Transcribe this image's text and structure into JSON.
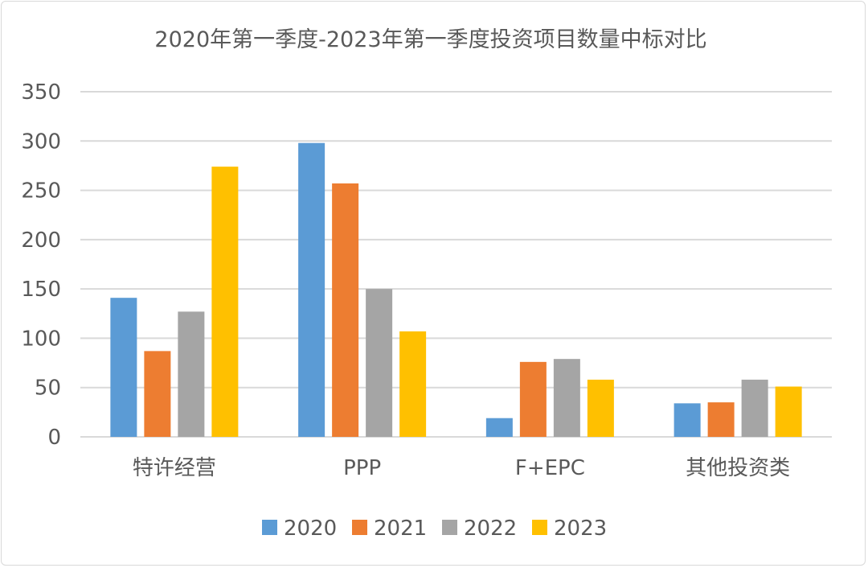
{
  "chart_data": {
    "type": "bar",
    "title": "2020年第一季度-2023年第一季度投资项目数量中标对比",
    "xlabel": "",
    "ylabel": "",
    "categories": [
      "特许经营",
      "PPP",
      "F+EPC",
      "其他投资类"
    ],
    "ylim": [
      0,
      350
    ],
    "yticks": [
      0,
      50,
      100,
      150,
      200,
      250,
      300,
      350
    ],
    "ytick_labels": [
      "0",
      "50",
      "100",
      "150",
      "200",
      "250",
      "300",
      "350"
    ],
    "grid": true,
    "legend_position": "bottom",
    "series": [
      {
        "name": "2020",
        "color": "#5b9bd5",
        "values": [
          141,
          298,
          19,
          34
        ]
      },
      {
        "name": "2021",
        "color": "#ed7d31",
        "values": [
          87,
          257,
          76,
          35
        ]
      },
      {
        "name": "2022",
        "color": "#a5a5a5",
        "values": [
          127,
          150,
          79,
          58
        ]
      },
      {
        "name": "2023",
        "color": "#ffc000",
        "values": [
          274,
          107,
          58,
          51
        ]
      }
    ]
  }
}
